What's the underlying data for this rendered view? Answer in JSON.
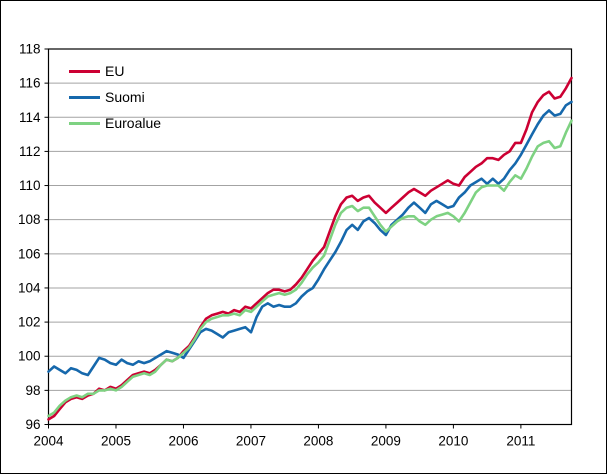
{
  "window": {
    "background": "#ffffff",
    "frame_border_color": "#000000"
  },
  "chart_data": {
    "type": "line",
    "title": "",
    "x_unit": "month",
    "x_start": "2004-01",
    "x_end": "2011-10",
    "x_tick_labels": [
      "2004",
      "2005",
      "2006",
      "2007",
      "2008",
      "2009",
      "2010",
      "2011"
    ],
    "y_ticks": [
      96,
      98,
      100,
      102,
      104,
      106,
      108,
      110,
      112,
      114,
      116,
      118
    ],
    "ylim": [
      96,
      118
    ],
    "grid": "horizontal",
    "grid_color": "#a3a3a3",
    "axis_color": "#000000",
    "legend_position": "top-left-inside",
    "series": [
      {
        "id": "eu",
        "name": "EU",
        "color": "#cc0033",
        "values": [
          96.3,
          96.5,
          96.9,
          97.3,
          97.5,
          97.6,
          97.5,
          97.7,
          97.8,
          98.1,
          98.0,
          98.2,
          98.1,
          98.3,
          98.6,
          98.9,
          99.0,
          99.1,
          99.0,
          99.2,
          99.5,
          99.8,
          99.7,
          99.9,
          100.3,
          100.6,
          101.1,
          101.7,
          102.2,
          102.4,
          102.5,
          102.6,
          102.5,
          102.7,
          102.6,
          102.9,
          102.8,
          103.1,
          103.4,
          103.7,
          103.9,
          103.9,
          103.8,
          103.9,
          104.2,
          104.6,
          105.1,
          105.6,
          106.0,
          106.4,
          107.3,
          108.2,
          108.9,
          109.3,
          109.4,
          109.1,
          109.3,
          109.4,
          109.0,
          108.7,
          108.4,
          108.7,
          109.0,
          109.3,
          109.6,
          109.8,
          109.6,
          109.4,
          109.7,
          109.9,
          110.1,
          110.3,
          110.1,
          110.0,
          110.5,
          110.8,
          111.1,
          111.3,
          111.6,
          111.6,
          111.5,
          111.8,
          112.0,
          112.5,
          112.5,
          113.3,
          114.3,
          114.9,
          115.3,
          115.5,
          115.1,
          115.2,
          115.7,
          116.3
        ]
      },
      {
        "id": "suomi",
        "name": "Suomi",
        "color": "#1668ac",
        "values": [
          99.1,
          99.4,
          99.2,
          99.0,
          99.3,
          99.2,
          99.0,
          98.9,
          99.4,
          99.9,
          99.8,
          99.6,
          99.5,
          99.8,
          99.6,
          99.5,
          99.7,
          99.6,
          99.7,
          99.9,
          100.1,
          100.3,
          100.2,
          100.1,
          99.9,
          100.4,
          100.9,
          101.4,
          101.6,
          101.5,
          101.3,
          101.1,
          101.4,
          101.5,
          101.6,
          101.7,
          101.4,
          102.3,
          102.9,
          103.1,
          102.9,
          103.0,
          102.9,
          102.9,
          103.1,
          103.5,
          103.8,
          104.0,
          104.5,
          105.1,
          105.6,
          106.1,
          106.7,
          107.4,
          107.7,
          107.4,
          107.9,
          108.1,
          107.8,
          107.4,
          107.1,
          107.7,
          108.0,
          108.3,
          108.7,
          109.0,
          108.7,
          108.4,
          108.9,
          109.1,
          108.9,
          108.7,
          108.8,
          109.3,
          109.6,
          110.0,
          110.2,
          110.4,
          110.1,
          110.4,
          110.1,
          110.4,
          110.9,
          111.3,
          111.8,
          112.4,
          113.0,
          113.6,
          114.1,
          114.4,
          114.1,
          114.2,
          114.7,
          114.9
        ]
      },
      {
        "id": "euroalue",
        "name": "Euroalue",
        "color": "#7ed282",
        "values": [
          96.5,
          96.7,
          97.1,
          97.4,
          97.6,
          97.7,
          97.6,
          97.8,
          97.8,
          98.0,
          98.0,
          98.1,
          98.0,
          98.2,
          98.5,
          98.8,
          98.9,
          99.0,
          98.9,
          99.1,
          99.5,
          99.8,
          99.7,
          99.9,
          100.2,
          100.5,
          101.0,
          101.6,
          102.0,
          102.2,
          102.3,
          102.4,
          102.4,
          102.5,
          102.4,
          102.7,
          102.6,
          102.9,
          103.2,
          103.5,
          103.6,
          103.7,
          103.6,
          103.7,
          103.9,
          104.3,
          104.8,
          105.2,
          105.5,
          105.9,
          106.8,
          107.7,
          108.4,
          108.7,
          108.8,
          108.5,
          108.7,
          108.7,
          108.2,
          107.7,
          107.3,
          107.6,
          107.9,
          108.1,
          108.2,
          108.2,
          107.9,
          107.7,
          108.0,
          108.2,
          108.3,
          108.4,
          108.2,
          107.9,
          108.4,
          109.0,
          109.6,
          109.9,
          110.0,
          110.0,
          110.0,
          109.7,
          110.2,
          110.6,
          110.4,
          111.0,
          111.7,
          112.3,
          112.5,
          112.6,
          112.2,
          112.3,
          113.1,
          113.8
        ]
      }
    ]
  }
}
